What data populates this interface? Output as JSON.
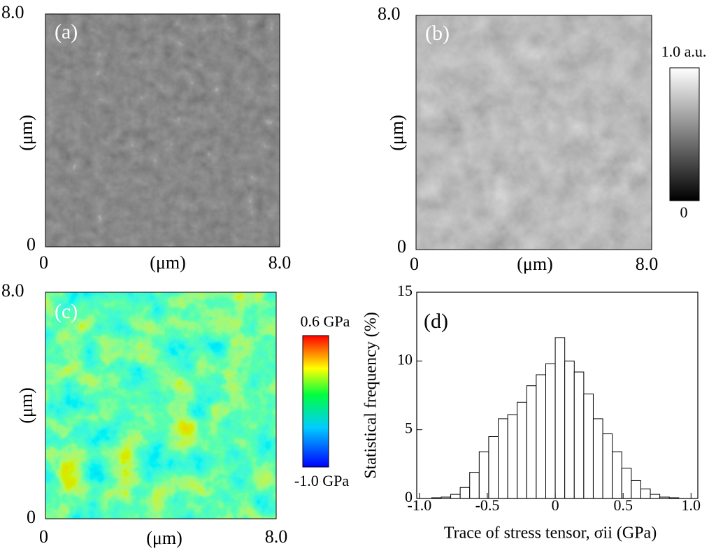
{
  "panels": [
    {
      "label": "(a)",
      "y_top": "8.0",
      "y_bottom": "0",
      "y_unit": "(μm)",
      "x_left": "0",
      "x_unit": "(μm)",
      "x_right": "8.0"
    },
    {
      "label": "(b)",
      "y_top": "8.0",
      "y_bottom": "0",
      "y_unit": "(μm)",
      "x_left": "0",
      "x_unit": "(μm)",
      "x_right": "8.0",
      "scale_top": "1.0 a.u.",
      "scale_bottom": "0"
    },
    {
      "label": "(c)",
      "y_top": "8.0",
      "y_bottom": "0",
      "y_unit": "(μm)",
      "x_left": "0",
      "x_unit": "(μm)",
      "x_right": "8.0",
      "scale_top": "0.6 GPa",
      "scale_bottom": "-1.0 GPa"
    }
  ],
  "chart_data": {
    "type": "histogram",
    "annotation": "(d)",
    "x_label": "Trace of stress tensor, σii (GPa)",
    "y_label": "Statistical frequency (%)",
    "bins": [
      -0.91,
      -0.84,
      -0.77,
      -0.7,
      -0.63,
      -0.56,
      -0.49,
      -0.42,
      -0.35,
      -0.28,
      -0.21,
      -0.14,
      -0.07,
      0,
      0.07,
      0.14,
      0.21,
      0.28,
      0.35,
      0.42,
      0.49,
      0.56,
      0.63,
      0.7,
      0.77,
      0.84,
      0.91
    ],
    "values": [
      0.05,
      0.1,
      0.3,
      0.8,
      1.9,
      3.4,
      4.5,
      5.8,
      6.1,
      7.0,
      8.2,
      9.0,
      9.8,
      11.7,
      10.0,
      9.2,
      7.6,
      5.8,
      4.7,
      3.4,
      2.2,
      1.3,
      0.7,
      0.3,
      0.1,
      0.05
    ],
    "color": "#ffffff",
    "xlim": [
      -1.02,
      1.05
    ],
    "xticks": [
      {
        "value": -1,
        "label": "-1.0"
      },
      -0.5,
      0,
      0.5,
      {
        "value": 1,
        "label": "1.0"
      }
    ],
    "ylim": [
      0,
      15
    ],
    "yticks": [
      0,
      5,
      10,
      15
    ]
  }
}
